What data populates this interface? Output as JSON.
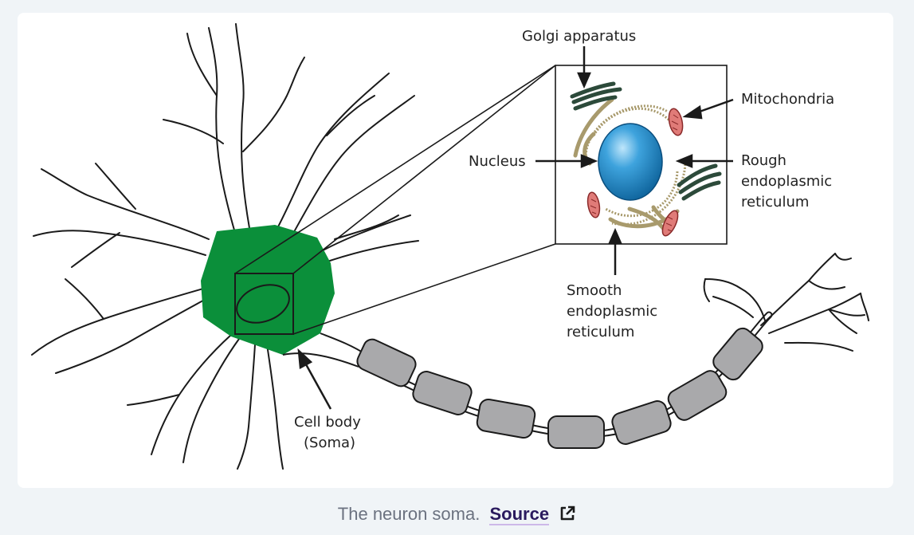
{
  "diagram": {
    "labels": {
      "golgi": "Golgi apparatus",
      "mitochondria": "Mitochondria",
      "nucleus": "Nucleus",
      "rough_er_1": "Rough",
      "rough_er_2": "endoplasmic",
      "rough_er_3": "reticulum",
      "smooth_er_1": "Smooth",
      "smooth_er_2": "endoplasmic",
      "smooth_er_3": "reticulum",
      "cell_body_1": "Cell body",
      "cell_body_2": "(Soma)"
    },
    "colors": {
      "soma": "#0b8f3a",
      "myelin": "#a9a9ab",
      "nucleus": "#1f84c4",
      "golgi": "#2c4a3a",
      "smooth_er": "#a89a6c",
      "mitochondria": "#e07b78"
    }
  },
  "caption": {
    "text": "The neuron soma.",
    "link": "Source",
    "icon": "external-link-icon"
  }
}
